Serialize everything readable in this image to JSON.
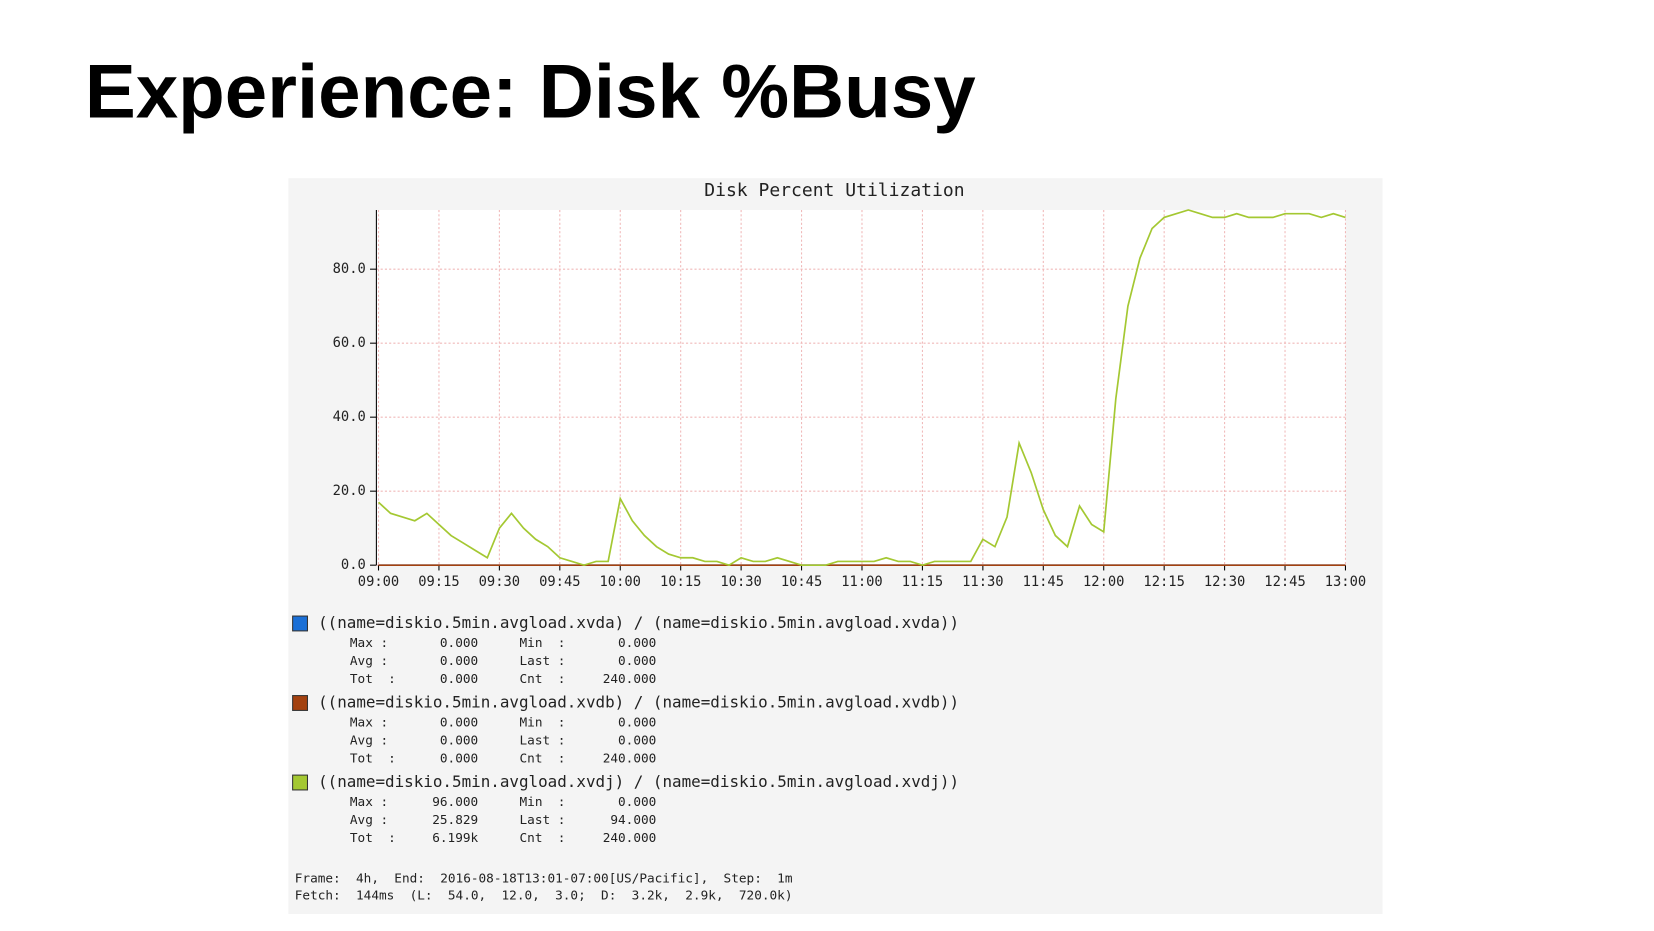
{
  "chart_data": {
    "type": "line",
    "page_title": "Experience: Disk %Busy",
    "title": "Disk Percent Utilization",
    "categories": [
      "09:00",
      null,
      null,
      null,
      null,
      "09:15",
      null,
      null,
      null,
      null,
      "09:30",
      null,
      null,
      null,
      null,
      "09:45",
      null,
      null,
      null,
      null,
      "10:00",
      null,
      null,
      null,
      null,
      "10:15",
      null,
      null,
      null,
      null,
      "10:30",
      null,
      null,
      null,
      null,
      "10:45",
      null,
      null,
      null,
      null,
      "11:00",
      null,
      null,
      null,
      null,
      "11:15",
      null,
      null,
      null,
      null,
      "11:30",
      null,
      null,
      null,
      null,
      "11:45",
      null,
      null,
      null,
      null,
      "12:00",
      null,
      null,
      null,
      null,
      "12:15",
      null,
      null,
      null,
      null,
      "12:30",
      null,
      null,
      null,
      null,
      "12:45",
      null,
      null,
      null,
      null,
      "13:00"
    ],
    "ylim": [
      0,
      96
    ],
    "yticks": [
      {
        "value": 0,
        "label": "0.0"
      },
      {
        "value": 20,
        "label": "20.0"
      },
      {
        "value": 40,
        "label": "40.0"
      },
      {
        "value": 60,
        "label": "60.0"
      },
      {
        "value": 80,
        "label": "80.0"
      }
    ],
    "grid": true,
    "series": [
      {
        "name": "((name=diskio.5min.avgload.xvda) / (name=diskio.5min.avgload.xvda))",
        "color": "#1a6fd6",
        "values": [
          0,
          0,
          0,
          0,
          0,
          0,
          0,
          0,
          0,
          0,
          0,
          0,
          0,
          0,
          0,
          0,
          0,
          0,
          0,
          0,
          0,
          0,
          0,
          0,
          0,
          0,
          0,
          0,
          0,
          0,
          0,
          0,
          0,
          0,
          0,
          0,
          0,
          0,
          0,
          0,
          0,
          0,
          0,
          0,
          0,
          0,
          0,
          0,
          0,
          0,
          0,
          0,
          0,
          0,
          0,
          0,
          0,
          0,
          0,
          0,
          0,
          0,
          0,
          0,
          0,
          0,
          0,
          0,
          0,
          0,
          0,
          0,
          0,
          0,
          0,
          0,
          0,
          0,
          0,
          0,
          0
        ],
        "stats": [
          "0.000",
          "0.000",
          "0.000",
          "0.000",
          "0.000",
          "240.000"
        ]
      },
      {
        "name": "((name=diskio.5min.avgload.xvdb) / (name=diskio.5min.avgload.xvdb))",
        "color": "#a3410f",
        "values": [
          0,
          0,
          0,
          0,
          0,
          0,
          0,
          0,
          0,
          0,
          0,
          0,
          0,
          0,
          0,
          0,
          0,
          0,
          0,
          0,
          0,
          0,
          0,
          0,
          0,
          0,
          0,
          0,
          0,
          0,
          0,
          0,
          0,
          0,
          0,
          0,
          0,
          0,
          0,
          0,
          0,
          0,
          0,
          0,
          0,
          0,
          0,
          0,
          0,
          0,
          0,
          0,
          0,
          0,
          0,
          0,
          0,
          0,
          0,
          0,
          0,
          0,
          0,
          0,
          0,
          0,
          0,
          0,
          0,
          0,
          0,
          0,
          0,
          0,
          0,
          0,
          0,
          0,
          0,
          0,
          0
        ],
        "stats": [
          "0.000",
          "0.000",
          "0.000",
          "0.000",
          "0.000",
          "240.000"
        ]
      },
      {
        "name": "((name=diskio.5min.avgload.xvdj) / (name=diskio.5min.avgload.xvdj))",
        "color": "#a4c832",
        "values": [
          17,
          14,
          13,
          12,
          14,
          11,
          8,
          6,
          4,
          2,
          10,
          14,
          10,
          7,
          5,
          2,
          1,
          0,
          1,
          1,
          18,
          12,
          8,
          5,
          3,
          2,
          2,
          1,
          1,
          0,
          2,
          1,
          1,
          2,
          1,
          0,
          0,
          0,
          1,
          1,
          1,
          1,
          2,
          1,
          1,
          0,
          1,
          1,
          1,
          1,
          7,
          5,
          13,
          33,
          25,
          15,
          8,
          5,
          16,
          11,
          9,
          45,
          70,
          83,
          91,
          94,
          95,
          96,
          95,
          94,
          94,
          95,
          94,
          94,
          94,
          95,
          95,
          95,
          94,
          95,
          94
        ],
        "stats": [
          "96.000",
          "0.000",
          "25.829",
          "94.000",
          "6.199k",
          "240.000"
        ]
      }
    ],
    "stat_labels": [
      "Max :",
      "Min  :",
      "Avg :",
      "Last :",
      "Tot  :",
      "Cnt  :"
    ],
    "footer": [
      "Frame:  4h,  End:  2016-08-18T13:01-07:00[US/Pacific],  Step:  1m",
      "Fetch:  144ms  (L:  54.0,  12.0,  3.0;  D:  3.2k,  2.9k,  720.0k)"
    ]
  }
}
